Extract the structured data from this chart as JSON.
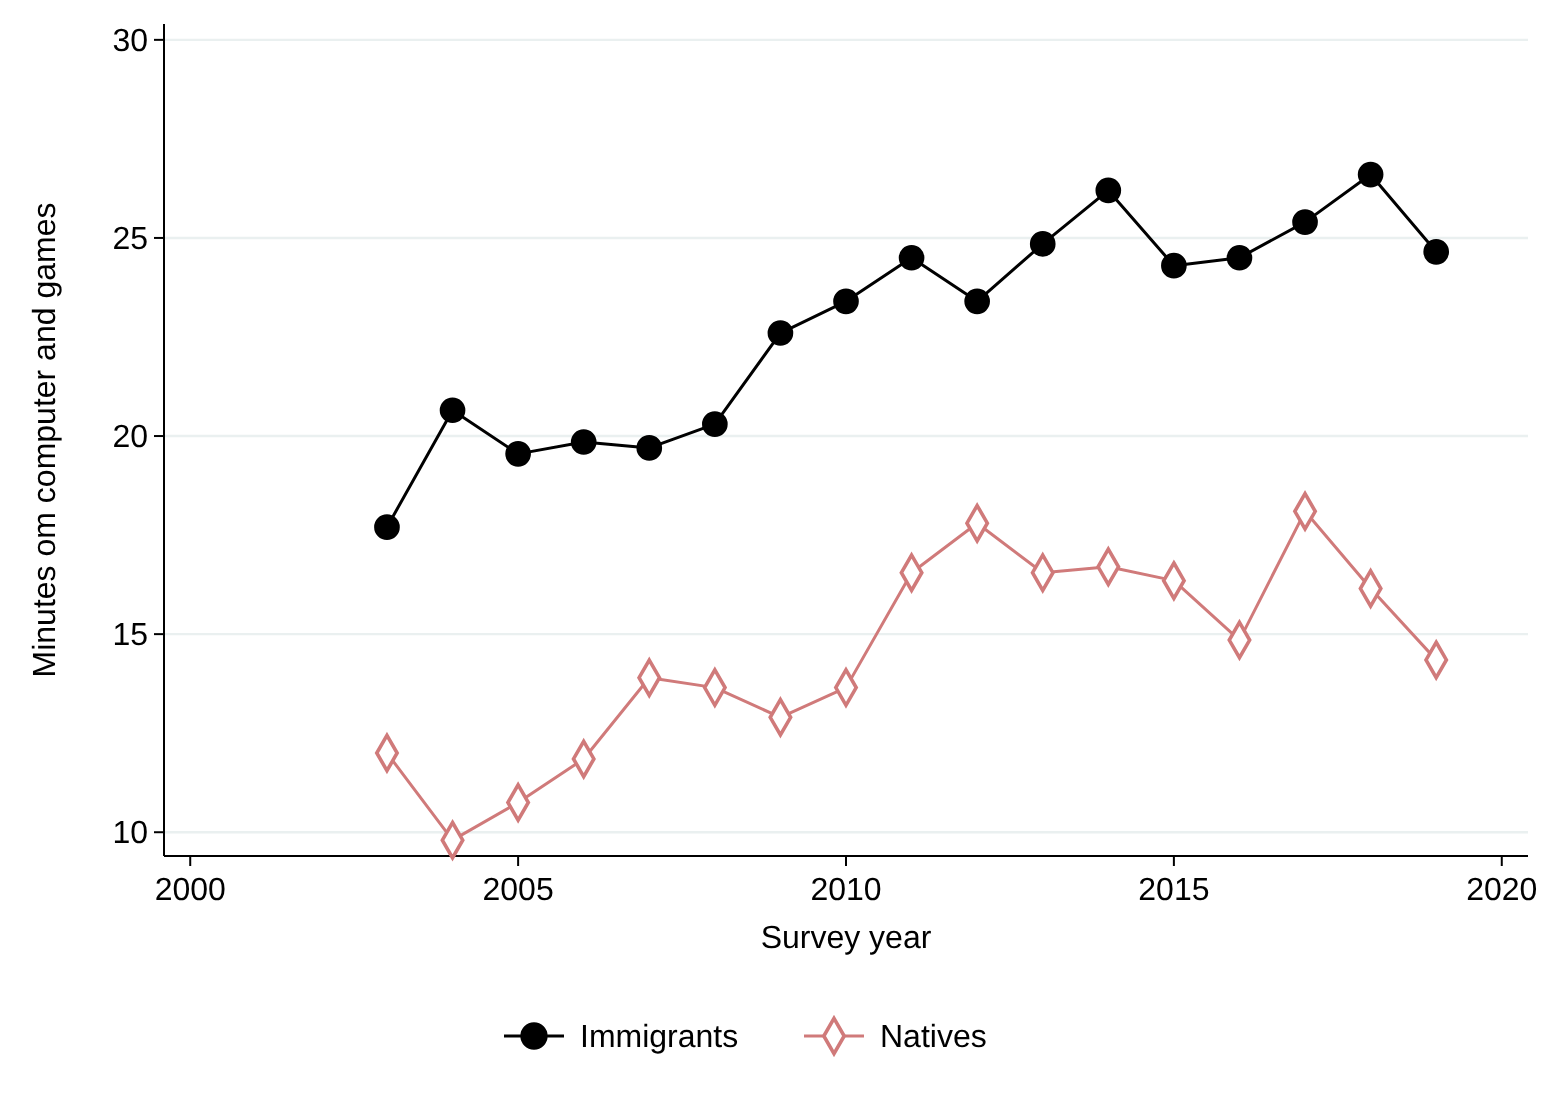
{
  "chart_data": {
    "type": "line",
    "xlabel": "Survey year",
    "ylabel": "Minutes om computer and games",
    "x": [
      2003,
      2004,
      2005,
      2006,
      2007,
      2008,
      2009,
      2010,
      2011,
      2012,
      2013,
      2014,
      2015,
      2016,
      2017,
      2018,
      2019
    ],
    "series": [
      {
        "name": "Immigrants",
        "color": "#000000",
        "marker": "circle",
        "values": [
          17.7,
          20.65,
          19.55,
          19.85,
          19.7,
          20.3,
          22.6,
          23.4,
          24.5,
          23.4,
          24.85,
          26.2,
          24.3,
          24.5,
          25.4,
          26.6,
          24.65
        ]
      },
      {
        "name": "Natives",
        "color": "#d07a7a",
        "marker": "diamond",
        "values": [
          12.0,
          9.8,
          10.75,
          11.85,
          13.9,
          13.65,
          12.9,
          13.65,
          16.55,
          17.8,
          16.55,
          16.7,
          16.35,
          14.85,
          18.1,
          16.15,
          14.35
        ]
      }
    ],
    "xlim": [
      1999.6,
      2020.4
    ],
    "xticks": [
      2000,
      2005,
      2010,
      2015,
      2020
    ],
    "ylim": [
      9.4,
      30.4
    ],
    "yticks": [
      10,
      15,
      20,
      25,
      30
    ],
    "grid": "y",
    "legend": "bottom",
    "line_style": "solid"
  }
}
